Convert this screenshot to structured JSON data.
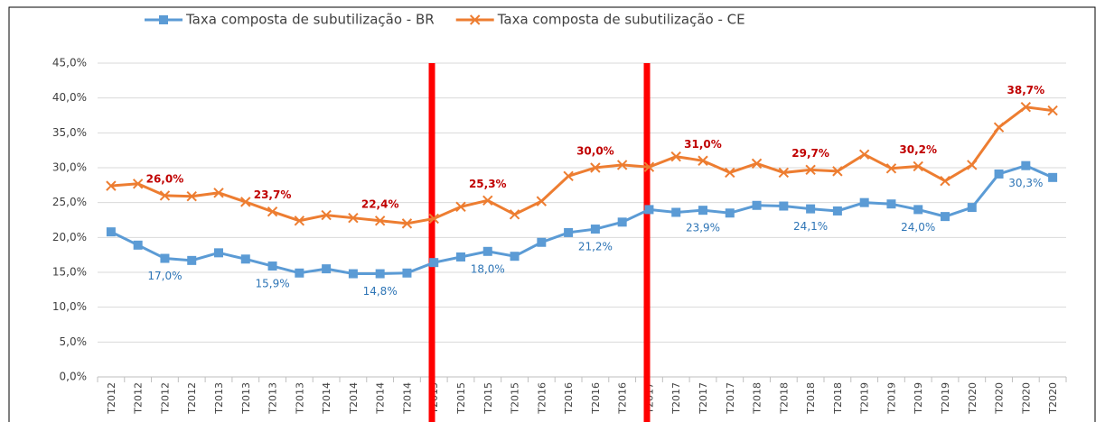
{
  "chart_data": {
    "type": "line",
    "categories": [
      "T2012",
      "T2012",
      "T2012",
      "T2012",
      "T2013",
      "T2013",
      "T2013",
      "T2013",
      "T2014",
      "T2014",
      "T2014",
      "T2014",
      "T2015",
      "T2015",
      "T2015",
      "T2015",
      "T2016",
      "T2016",
      "T2016",
      "T2016",
      "T2017",
      "T2017",
      "T2017",
      "T2017",
      "T2018",
      "T2018",
      "T2018",
      "T2018",
      "T2019",
      "T2019",
      "T2019",
      "T2019",
      "T2020",
      "T2020",
      "T2020",
      "T2020"
    ],
    "series": [
      {
        "name": "Taxa composta de subutilização - BR",
        "color": "#5b9bd5",
        "values": [
          20.8,
          18.9,
          17.0,
          16.7,
          17.8,
          16.9,
          15.9,
          14.9,
          15.5,
          14.8,
          14.8,
          14.9,
          16.4,
          17.2,
          18.0,
          17.3,
          19.3,
          20.7,
          21.2,
          22.2,
          24.0,
          23.6,
          23.9,
          23.5,
          24.6,
          24.5,
          24.1,
          23.8,
          25.0,
          24.8,
          24.0,
          23.0,
          24.3,
          29.1,
          30.3,
          28.6
        ],
        "value_labels": [
          null,
          null,
          "17,0%",
          null,
          null,
          null,
          "15,9%",
          null,
          null,
          null,
          "14,8%",
          null,
          null,
          null,
          "18,0%",
          null,
          null,
          null,
          "21,2%",
          null,
          null,
          null,
          "23,9%",
          null,
          null,
          null,
          "24,1%",
          null,
          null,
          null,
          "24,0%",
          null,
          null,
          null,
          "30,3%",
          null
        ]
      },
      {
        "name": "Taxa composta de subutilização - CE",
        "color": "#ed7d31",
        "values": [
          27.4,
          27.7,
          26.0,
          25.9,
          26.4,
          25.1,
          23.7,
          22.4,
          23.2,
          22.8,
          22.4,
          22.0,
          22.7,
          24.4,
          25.3,
          23.3,
          25.2,
          28.8,
          30.0,
          30.4,
          30.1,
          31.6,
          31.0,
          29.3,
          30.6,
          29.3,
          29.7,
          29.5,
          31.9,
          29.9,
          30.2,
          28.1,
          30.4,
          35.8,
          38.7,
          38.2
        ],
        "value_labels": [
          null,
          null,
          "26,0%",
          null,
          null,
          null,
          "23,7%",
          null,
          null,
          null,
          "22,4%",
          null,
          null,
          null,
          "25,3%",
          null,
          null,
          null,
          "30,0%",
          null,
          null,
          null,
          "31,0%",
          null,
          null,
          null,
          "29,7%",
          null,
          null,
          null,
          "30,2%",
          null,
          null,
          null,
          "38,7%",
          null
        ]
      }
    ],
    "ylim": [
      0,
      45
    ],
    "yticks": [
      {
        "value": 0,
        "label": "0,0%"
      },
      {
        "value": 5,
        "label": "5,0%"
      },
      {
        "value": 10,
        "label": "10,0%"
      },
      {
        "value": 15,
        "label": "15,0%"
      },
      {
        "value": 20,
        "label": "20,0%"
      },
      {
        "value": 25,
        "label": "25,0%"
      },
      {
        "value": 30,
        "label": "30,0%"
      },
      {
        "value": 35,
        "label": "35,0%"
      },
      {
        "value": 40,
        "label": "40,0%"
      },
      {
        "value": 45,
        "label": "45,0%"
      }
    ],
    "grid": true
  }
}
